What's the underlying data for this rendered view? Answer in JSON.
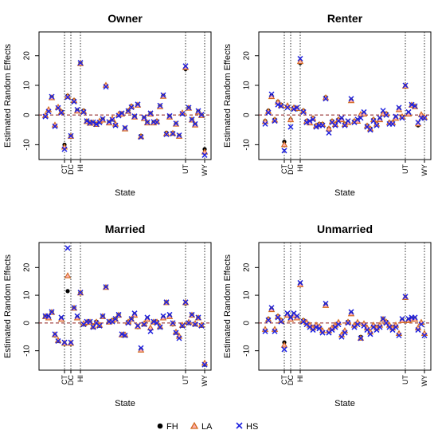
{
  "figure": {
    "legend": [
      {
        "key": "FH",
        "label": "FH",
        "marker": "filled-circle",
        "color": "#000000"
      },
      {
        "key": "LA",
        "label": "LA",
        "marker": "triangle",
        "color": "#d2691e"
      },
      {
        "key": "HS",
        "label": "HS",
        "marker": "x",
        "color": "#1f22e0"
      }
    ],
    "legend_placement": "bottom-center"
  },
  "chart_data": [
    {
      "type": "scatter",
      "title": "Owner",
      "xlabel": "State",
      "ylabel": "Estimated Random Effects",
      "yticks": [
        -10,
        0,
        10,
        20
      ],
      "ylim": [
        -15,
        28
      ],
      "xlim": [
        1,
        51
      ],
      "grid": false,
      "highlighted_states": [
        {
          "label": "CT",
          "x": 7
        },
        {
          "label": "DC",
          "x": 9
        },
        {
          "label": "HI",
          "x": 12
        },
        {
          "label": "UT",
          "x": 45
        },
        {
          "label": "WY",
          "x": 51
        }
      ],
      "series": [
        {
          "name": "FH",
          "values": [
            -0.3,
            1.5,
            6,
            -3.6,
            2.5,
            1.2,
            -10,
            6.5,
            -7,
            5,
            1.5,
            17.5,
            1.5,
            -2,
            -2.5,
            -2.5,
            -3,
            -2.3,
            -1.5,
            10,
            -2.5,
            -1.5,
            -3.3,
            0,
            0.5,
            -4.5,
            1.5,
            3,
            -0.5,
            3.5,
            -7,
            -1,
            -2.5,
            0.5,
            -2.5,
            -2,
            3,
            6.5,
            -6,
            -0.5,
            -6,
            -3,
            -7,
            0.5,
            15.5,
            2.5,
            -1.5,
            -3.2,
            1.2,
            0,
            -11.5
          ]
        },
        {
          "name": "LA",
          "values": [
            -0.2,
            1.8,
            5.8,
            -3.4,
            2.6,
            1.0,
            -10.8,
            6.3,
            -7.2,
            4.8,
            1.3,
            17.3,
            1.2,
            -2.2,
            -2.8,
            -2.6,
            -3.2,
            -2.1,
            -1.7,
            10.0,
            -2.7,
            -1.3,
            -3.1,
            0.2,
            0.3,
            -4.7,
            1.2,
            2.8,
            -0.7,
            3.3,
            -7.3,
            -1.2,
            -2.7,
            0.3,
            -2.7,
            -2.2,
            2.8,
            6.3,
            -6.3,
            -0.7,
            -6.2,
            -3.1,
            -7.2,
            0.7,
            16.0,
            2.3,
            -1.7,
            -3.4,
            1.0,
            -0.2,
            -12.5
          ]
        },
        {
          "name": "HS",
          "values": [
            -0.5,
            1.2,
            6.2,
            -3.8,
            2.4,
            0.8,
            -11.5,
            6.0,
            -7.0,
            4.5,
            1.8,
            17.6,
            1.0,
            -2.0,
            -2.7,
            -2.4,
            -3.1,
            -2.5,
            -1.3,
            9.5,
            -2.3,
            -1.6,
            -3.5,
            -0.2,
            0.6,
            -4.3,
            1.4,
            2.6,
            -0.4,
            3.6,
            -7.4,
            -0.8,
            -2.4,
            0.6,
            -2.3,
            -2.4,
            3.2,
            6.7,
            -6.5,
            -0.3,
            -6.3,
            -2.8,
            -6.8,
            0.4,
            16.5,
            2.5,
            -1.5,
            -3.0,
            1.4,
            0.1,
            -13.5
          ]
        }
      ]
    },
    {
      "type": "scatter",
      "title": "Renter",
      "xlabel": "State",
      "ylabel": "Estimated Random Effects",
      "yticks": [
        -10,
        0,
        10,
        20
      ],
      "ylim": [
        -15,
        28
      ],
      "xlim": [
        1,
        51
      ],
      "grid": false,
      "highlighted_states": [
        {
          "label": "CT",
          "x": 7
        },
        {
          "label": "DC",
          "x": 9
        },
        {
          "label": "HI",
          "x": 12
        },
        {
          "label": "UT",
          "x": 45
        },
        {
          "label": "WY",
          "x": 51
        }
      ],
      "series": [
        {
          "name": "FH",
          "values": [
            -2,
            1.5,
            6.5,
            -1.5,
            4.5,
            3.5,
            -9,
            3,
            -1.5,
            2.5,
            2,
            17.5,
            1.5,
            -2,
            -2.5,
            -1,
            -3.5,
            -3,
            -3,
            6,
            -4.5,
            -2,
            -3,
            -1.5,
            -1.5,
            -3,
            -2.5,
            5,
            -2,
            -2,
            0,
            0.5,
            -3.5,
            -4.5,
            -1.5,
            -3,
            -1.5,
            0.5,
            0.5,
            -2.5,
            -2.5,
            -1,
            2,
            -0.5,
            9.5,
            0.5,
            3.5,
            3,
            -3.5,
            0,
            -1
          ]
        },
        {
          "name": "LA",
          "values": [
            -2.2,
            1.2,
            6.2,
            -1.7,
            4.3,
            3.2,
            -10,
            3.1,
            -1.6,
            2.4,
            2.2,
            18,
            1.3,
            -2.2,
            -2.7,
            -1.2,
            -3.7,
            -3.2,
            -3.2,
            5.8,
            -4.7,
            -2.2,
            -3.2,
            -1.6,
            -1.6,
            -3.2,
            -2.6,
            4.8,
            -2.1,
            -2.1,
            0.2,
            0.3,
            -3.7,
            -4.7,
            -1.6,
            -3.1,
            -1.6,
            0.4,
            0.3,
            -2.6,
            -2.6,
            -1.1,
            1.8,
            -0.6,
            9.7,
            0.3,
            3.3,
            2.8,
            -3.0,
            0.1,
            -0.8
          ]
        },
        {
          "name": "HS",
          "values": [
            -3,
            0.8,
            7,
            -2,
            3.5,
            3,
            -12,
            2.5,
            -4,
            2,
            2.5,
            19,
            1,
            -2.5,
            -2,
            -1.5,
            -4,
            -3.5,
            -3.5,
            5.5,
            -6,
            -2.5,
            -3.5,
            -2,
            -1,
            -3.5,
            -2,
            5.5,
            -2.5,
            -1.5,
            -1,
            1,
            -4,
            -5,
            -2,
            -3.5,
            -1,
            1.5,
            0,
            -3,
            -3,
            -0.5,
            2.5,
            -1,
            10,
            1,
            3.5,
            3,
            -2.5,
            -1,
            -1
          ]
        }
      ]
    },
    {
      "type": "scatter",
      "title": "Married",
      "xlabel": "State",
      "ylabel": "Estimated Random Effects",
      "yticks": [
        -10,
        0,
        10,
        20
      ],
      "ylim": [
        -17,
        29
      ],
      "xlim": [
        1,
        51
      ],
      "grid": false,
      "highlighted_states": [
        {
          "label": "CT",
          "x": 7
        },
        {
          "label": "DC",
          "x": 9
        },
        {
          "label": "HI",
          "x": 12
        },
        {
          "label": "UT",
          "x": 45
        },
        {
          "label": "WY",
          "x": 51
        }
      ],
      "series": [
        {
          "name": "FH",
          "values": [
            2.5,
            2,
            4,
            -4.5,
            -6.5,
            1.5,
            -7.5,
            11.5,
            -7.5,
            5.5,
            2,
            11,
            -0.5,
            0,
            0.5,
            -1.5,
            0.5,
            -1,
            2.5,
            13,
            0.5,
            1,
            1.5,
            3,
            -4.5,
            -4.5,
            0.5,
            1.5,
            3,
            -1.5,
            -9.5,
            -0.5,
            1.5,
            -2,
            0.5,
            0.5,
            -1.5,
            2,
            7.5,
            2.5,
            -0.5,
            -3.5,
            -5,
            -1,
            7,
            0,
            3,
            -0.5,
            2,
            -1,
            -15
          ]
        },
        {
          "name": "LA",
          "values": [
            2.3,
            1.8,
            3.8,
            -4.3,
            -6.3,
            1.3,
            -7.3,
            17,
            -7.3,
            5.3,
            1.8,
            10.8,
            -0.3,
            0.2,
            0.3,
            -1.3,
            0.3,
            -0.8,
            2.3,
            12.8,
            0.3,
            0.8,
            1.3,
            2.8,
            -4.3,
            -4.3,
            0.3,
            1.3,
            2.8,
            -1.3,
            -9.8,
            -0.3,
            1.3,
            -1.8,
            0.3,
            0.3,
            -1.3,
            1.8,
            7.3,
            2.3,
            -0.3,
            -3.3,
            -4.8,
            -0.8,
            7.3,
            0.2,
            2.8,
            -0.3,
            1.8,
            -0.8,
            -14.5
          ]
        },
        {
          "name": "HS",
          "values": [
            2.5,
            2.5,
            4,
            -4,
            -6.5,
            2,
            -7,
            27,
            -7,
            5.5,
            2.5,
            11,
            -0.5,
            0.5,
            0.5,
            -1.5,
            0,
            -1,
            2.5,
            13,
            0.5,
            0.5,
            1.5,
            3,
            -4,
            -4.5,
            0,
            1.5,
            3.5,
            -1,
            -9,
            -0.5,
            2,
            -3,
            0.5,
            0,
            -1.5,
            2.5,
            7.5,
            3,
            0,
            -3.5,
            -5.5,
            -1,
            7.5,
            0,
            3,
            -0.5,
            2,
            -1,
            -15
          ]
        }
      ]
    },
    {
      "type": "scatter",
      "title": "Unmarried",
      "xlabel": "State",
      "ylabel": "Estimated Random Effects",
      "yticks": [
        -10,
        0,
        10,
        20
      ],
      "ylim": [
        -17,
        29
      ],
      "xlim": [
        1,
        51
      ],
      "grid": false,
      "highlighted_states": [
        {
          "label": "CT",
          "x": 7
        },
        {
          "label": "DC",
          "x": 9
        },
        {
          "label": "HI",
          "x": 12
        },
        {
          "label": "UT",
          "x": 45
        },
        {
          "label": "WY",
          "x": 51
        }
      ],
      "series": [
        {
          "name": "FH",
          "values": [
            -2.5,
            1.5,
            5,
            -2.5,
            2.5,
            1,
            -7,
            3,
            1.5,
            3,
            2,
            14,
            1,
            0,
            -1,
            -2,
            -1,
            -1.5,
            -3,
            6.5,
            -3,
            -2,
            -1,
            0,
            -4.5,
            -3,
            0.5,
            3.5,
            -1,
            0,
            -5,
            -0.5,
            -2,
            -3.5,
            -1,
            -2,
            -1,
            1.5,
            0.5,
            -1,
            -2,
            -1,
            -4,
            1,
            9,
            1,
            1.5,
            1.5,
            -2,
            0,
            -4
          ]
        },
        {
          "name": "LA",
          "values": [
            -2.3,
            1.3,
            4.8,
            -2.3,
            2.3,
            0.8,
            -8,
            2.8,
            1.3,
            2.8,
            1.8,
            13.8,
            0.8,
            0.2,
            -0.8,
            -1.8,
            -0.8,
            -1.3,
            -2.8,
            6.3,
            -2.8,
            -1.8,
            -0.8,
            0.2,
            -4.3,
            -2.8,
            0.3,
            3.3,
            -0.8,
            0.2,
            -5.5,
            -0.3,
            -1.8,
            -3.3,
            -0.8,
            -1.8,
            -0.8,
            1.3,
            0.3,
            -0.8,
            -1.8,
            -0.8,
            -3.8,
            0.8,
            9.2,
            0.8,
            1.3,
            1.3,
            -1.8,
            0.2,
            -3.8
          ]
        },
        {
          "name": "HS",
          "values": [
            -3,
            1,
            5.5,
            -3,
            2,
            0.5,
            -9.5,
            3.5,
            2,
            3.5,
            2.5,
            14.5,
            0.5,
            -0.5,
            -1.5,
            -2.5,
            -1.5,
            -2,
            -3.5,
            7,
            -3.5,
            -2.5,
            -1.5,
            -0.5,
            -5,
            -3.5,
            0,
            4,
            -1.5,
            -0.5,
            -5.5,
            -1,
            -2.5,
            -4,
            -1.5,
            -2.5,
            -1.5,
            1.5,
            0,
            -1.5,
            -2.5,
            -1.5,
            -4.5,
            1.5,
            9.5,
            1.5,
            2,
            2,
            -2.5,
            -0.5,
            -4.5
          ]
        }
      ]
    }
  ]
}
